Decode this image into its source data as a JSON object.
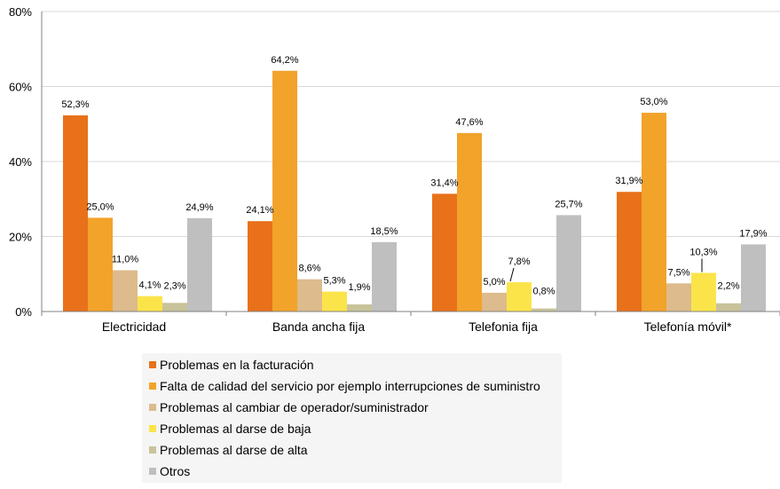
{
  "chart_data": {
    "type": "bar",
    "categories": [
      "Electricidad",
      "Banda ancha fija",
      "Telefonia fija",
      "Telefonía móvil*"
    ],
    "series": [
      {
        "name": "Problemas en la facturación",
        "color": "#E8711A",
        "values": [
          52.3,
          24.1,
          31.4,
          31.9
        ],
        "labels": [
          "52,3%",
          "24,1%",
          "31,4%",
          "31,9%"
        ]
      },
      {
        "name": "Falta de calidad del servicio por ejemplo interrupciones de suministro",
        "color": "#F2A32A",
        "values": [
          25.0,
          64.2,
          47.6,
          53.0
        ],
        "labels": [
          "25,0%",
          "64,2%",
          "47,6%",
          "53,0%"
        ]
      },
      {
        "name": "Problemas al cambiar de operador/suministrador",
        "color": "#DDBB8C",
        "values": [
          11.0,
          8.6,
          5.0,
          7.5
        ],
        "labels": [
          "11,0%",
          "8,6%",
          "5,0%",
          "7,5%"
        ]
      },
      {
        "name": "Problemas al darse de baja",
        "color": "#FBE44A",
        "values": [
          4.1,
          5.3,
          7.8,
          10.3
        ],
        "labels": [
          "4,1%",
          "5,3%",
          "7,8%",
          "10,3%"
        ]
      },
      {
        "name": "Problemas al darse de alta",
        "color": "#C8C39A",
        "values": [
          2.3,
          1.9,
          0.8,
          2.2
        ],
        "labels": [
          "2,3%",
          "1,9%",
          "0,8%",
          "2,2%"
        ]
      },
      {
        "name": "Otros",
        "color": "#BFBFBF",
        "values": [
          24.9,
          18.5,
          25.7,
          17.9
        ],
        "labels": [
          "24,9%",
          "18,5%",
          "25,7%",
          "17,9%"
        ]
      }
    ],
    "ylim": [
      0,
      80
    ],
    "yticks": [
      "0%",
      "20%",
      "40%",
      "60%",
      "80%"
    ],
    "ytick_values": [
      0,
      20,
      40,
      60,
      80
    ],
    "grid": true,
    "legend_position": "bottom"
  }
}
